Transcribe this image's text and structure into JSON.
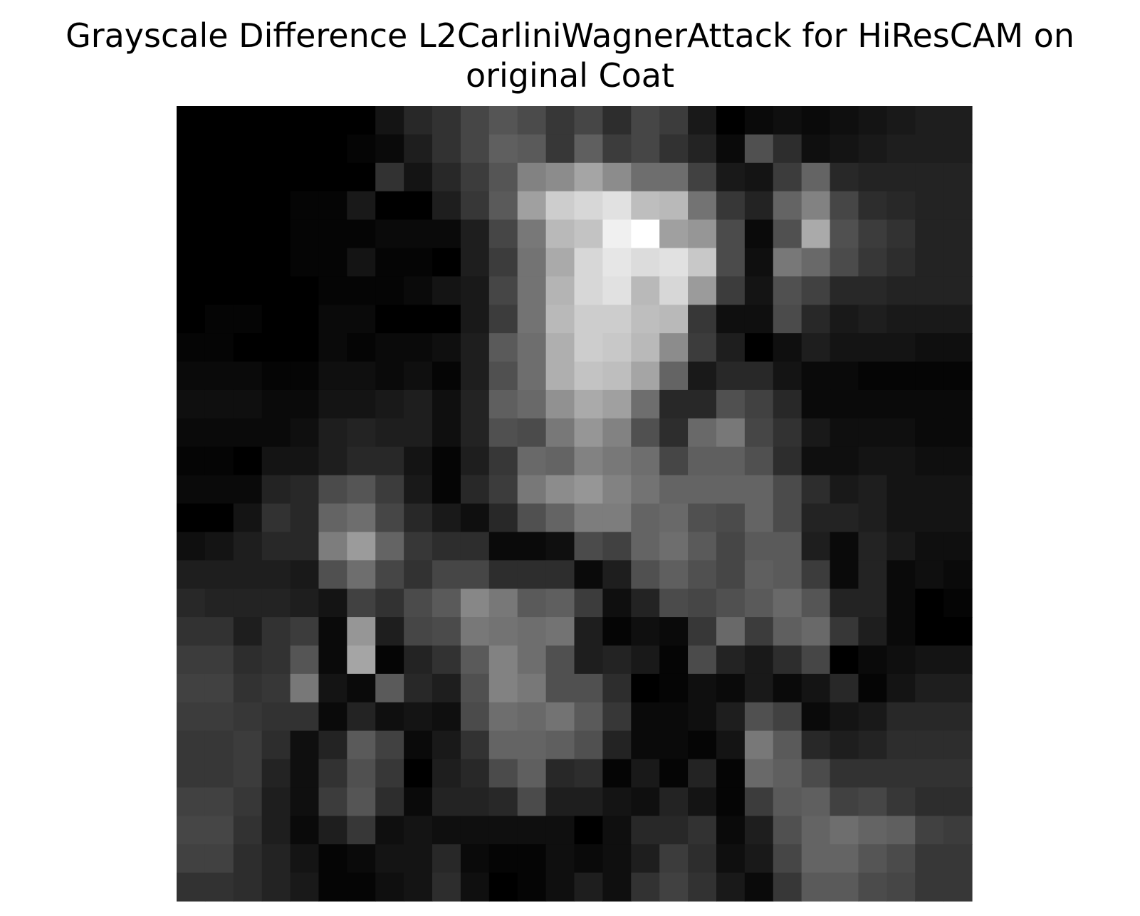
{
  "chart_data": {
    "type": "heatmap",
    "title": "Grayscale Difference L2CarliniWagnerAttack for HiResCAM on original Coat",
    "title_lines": [
      "Grayscale Difference L2CarliniWagnerAttack for HiResCAM on",
      "original Coat"
    ],
    "colormap": "gray",
    "axes_visible": false,
    "rows": 28,
    "cols": 28,
    "values": [
      [
        0,
        0,
        0,
        0,
        0,
        0,
        0,
        20,
        40,
        50,
        70,
        85,
        75,
        55,
        70,
        45,
        70,
        60,
        25,
        0,
        10,
        15,
        10,
        15,
        20,
        25,
        30,
        30
      ],
      [
        0,
        0,
        0,
        0,
        0,
        0,
        5,
        10,
        30,
        50,
        70,
        95,
        90,
        55,
        95,
        60,
        70,
        50,
        35,
        10,
        80,
        45,
        15,
        20,
        25,
        30,
        30,
        30
      ],
      [
        0,
        0,
        0,
        0,
        0,
        0,
        0,
        50,
        20,
        40,
        60,
        85,
        130,
        140,
        165,
        140,
        110,
        110,
        65,
        25,
        20,
        60,
        100,
        40,
        35,
        35,
        35,
        35
      ],
      [
        0,
        0,
        0,
        0,
        5,
        5,
        25,
        0,
        0,
        30,
        55,
        90,
        160,
        205,
        215,
        225,
        190,
        185,
        115,
        55,
        35,
        100,
        130,
        70,
        45,
        40,
        35,
        35
      ],
      [
        0,
        0,
        0,
        0,
        5,
        5,
        5,
        10,
        10,
        10,
        30,
        70,
        120,
        185,
        195,
        240,
        255,
        160,
        150,
        75,
        10,
        80,
        170,
        80,
        60,
        50,
        35,
        35
      ],
      [
        0,
        0,
        0,
        0,
        5,
        5,
        20,
        5,
        5,
        0,
        30,
        60,
        115,
        170,
        215,
        230,
        220,
        225,
        200,
        75,
        15,
        120,
        105,
        75,
        55,
        45,
        35,
        35
      ],
      [
        0,
        0,
        0,
        0,
        0,
        5,
        5,
        5,
        10,
        20,
        25,
        70,
        115,
        180,
        215,
        225,
        185,
        215,
        155,
        60,
        20,
        80,
        65,
        40,
        40,
        35,
        35,
        35
      ],
      [
        0,
        5,
        5,
        0,
        0,
        10,
        10,
        0,
        0,
        0,
        25,
        60,
        115,
        185,
        205,
        205,
        190,
        185,
        55,
        15,
        15,
        75,
        40,
        25,
        30,
        25,
        25,
        25
      ],
      [
        5,
        5,
        0,
        0,
        0,
        10,
        5,
        10,
        10,
        15,
        30,
        90,
        110,
        175,
        205,
        200,
        185,
        140,
        60,
        30,
        0,
        15,
        30,
        20,
        20,
        20,
        15,
        15
      ],
      [
        10,
        10,
        10,
        5,
        5,
        15,
        15,
        10,
        15,
        5,
        30,
        80,
        110,
        175,
        195,
        190,
        165,
        100,
        25,
        40,
        40,
        20,
        10,
        10,
        5,
        5,
        5,
        5
      ],
      [
        15,
        15,
        15,
        10,
        10,
        20,
        20,
        25,
        30,
        15,
        35,
        95,
        105,
        145,
        170,
        160,
        110,
        40,
        40,
        80,
        65,
        40,
        10,
        10,
        10,
        10,
        10,
        10
      ],
      [
        10,
        10,
        10,
        10,
        15,
        30,
        35,
        30,
        30,
        15,
        35,
        80,
        75,
        120,
        150,
        130,
        80,
        45,
        105,
        120,
        70,
        50,
        25,
        15,
        15,
        15,
        10,
        10
      ],
      [
        5,
        5,
        0,
        20,
        20,
        30,
        40,
        40,
        20,
        5,
        30,
        55,
        105,
        100,
        130,
        120,
        110,
        70,
        95,
        95,
        80,
        45,
        15,
        15,
        20,
        20,
        15,
        15
      ],
      [
        10,
        10,
        10,
        35,
        40,
        75,
        85,
        60,
        25,
        5,
        40,
        60,
        120,
        140,
        150,
        130,
        115,
        100,
        100,
        100,
        100,
        75,
        45,
        25,
        30,
        20,
        20,
        20
      ],
      [
        0,
        0,
        20,
        50,
        40,
        100,
        110,
        70,
        40,
        25,
        15,
        40,
        80,
        100,
        125,
        125,
        100,
        105,
        80,
        75,
        100,
        75,
        35,
        35,
        30,
        20,
        20,
        20
      ],
      [
        15,
        20,
        30,
        40,
        40,
        125,
        155,
        100,
        55,
        45,
        45,
        10,
        10,
        15,
        75,
        65,
        100,
        110,
        90,
        70,
        90,
        90,
        30,
        10,
        35,
        25,
        15,
        15
      ],
      [
        30,
        30,
        30,
        30,
        25,
        80,
        110,
        70,
        50,
        70,
        70,
        45,
        45,
        45,
        10,
        30,
        80,
        95,
        80,
        70,
        95,
        90,
        60,
        10,
        35,
        10,
        15,
        10
      ],
      [
        40,
        35,
        35,
        35,
        30,
        20,
        65,
        50,
        75,
        90,
        135,
        120,
        90,
        95,
        60,
        15,
        35,
        75,
        70,
        80,
        90,
        105,
        85,
        35,
        35,
        10,
        0,
        5
      ],
      [
        50,
        50,
        30,
        50,
        60,
        10,
        150,
        30,
        70,
        75,
        120,
        115,
        110,
        115,
        30,
        5,
        15,
        10,
        55,
        105,
        60,
        95,
        105,
        55,
        30,
        10,
        0,
        0
      ],
      [
        60,
        60,
        45,
        50,
        85,
        10,
        165,
        5,
        35,
        50,
        90,
        130,
        110,
        80,
        30,
        35,
        25,
        5,
        75,
        35,
        25,
        45,
        70,
        0,
        10,
        15,
        20,
        20
      ],
      [
        65,
        65,
        50,
        55,
        120,
        20,
        10,
        90,
        40,
        30,
        80,
        130,
        120,
        80,
        80,
        45,
        0,
        5,
        15,
        10,
        25,
        10,
        20,
        40,
        5,
        20,
        30,
        30
      ],
      [
        60,
        60,
        55,
        50,
        50,
        10,
        35,
        15,
        20,
        15,
        75,
        110,
        105,
        115,
        90,
        55,
        10,
        10,
        15,
        30,
        80,
        65,
        10,
        20,
        25,
        40,
        40,
        40
      ],
      [
        55,
        55,
        60,
        45,
        15,
        35,
        90,
        65,
        10,
        25,
        50,
        100,
        100,
        95,
        80,
        35,
        10,
        10,
        5,
        20,
        120,
        90,
        40,
        30,
        35,
        45,
        45,
        45
      ],
      [
        55,
        55,
        60,
        35,
        15,
        50,
        80,
        55,
        0,
        30,
        40,
        75,
        95,
        40,
        45,
        5,
        25,
        5,
        35,
        5,
        105,
        95,
        75,
        50,
        50,
        50,
        50,
        50
      ],
      [
        65,
        65,
        55,
        30,
        15,
        60,
        85,
        45,
        10,
        35,
        35,
        40,
        75,
        30,
        30,
        20,
        15,
        35,
        20,
        5,
        60,
        90,
        95,
        65,
        70,
        55,
        45,
        45
      ],
      [
        70,
        70,
        50,
        30,
        10,
        30,
        55,
        15,
        20,
        15,
        15,
        15,
        15,
        15,
        0,
        15,
        40,
        40,
        50,
        10,
        30,
        80,
        100,
        110,
        100,
        95,
        65,
        60
      ],
      [
        65,
        65,
        45,
        35,
        20,
        5,
        10,
        20,
        20,
        40,
        10,
        5,
        5,
        15,
        10,
        15,
        30,
        60,
        45,
        15,
        25,
        70,
        100,
        100,
        85,
        75,
        55,
        55
      ],
      [
        50,
        50,
        45,
        35,
        25,
        5,
        5,
        15,
        20,
        45,
        15,
        0,
        5,
        15,
        30,
        15,
        50,
        65,
        50,
        25,
        10,
        55,
        90,
        90,
        75,
        70,
        55,
        55
      ]
    ]
  }
}
